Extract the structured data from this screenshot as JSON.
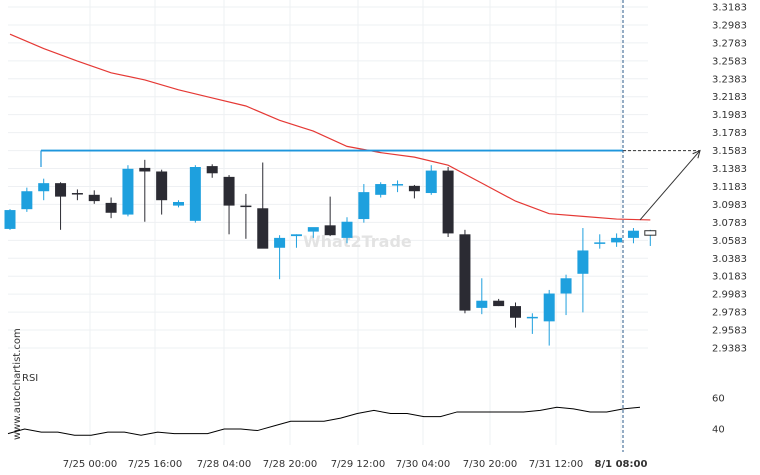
{
  "watermark": "What2Trade",
  "side_watermark": "www.autochartist.com",
  "rsi_label": "RSI",
  "colors": {
    "bull": "#1ea0de",
    "bear": "#2b2b33",
    "ma": "#e53935",
    "resistance": "#1e96dc",
    "rsi": "#000000",
    "vline": "#2a5a8a"
  },
  "chart_data": {
    "type": "candlestick",
    "instrument_timeframe": "hourly",
    "price_axis": {
      "min": 2.9283,
      "max": 3.3183,
      "ticks": [
        "3.3183",
        "3.2983",
        "3.2783",
        "3.2583",
        "3.2383",
        "3.2183",
        "3.1983",
        "3.1783",
        "3.1583",
        "3.1383",
        "3.1183",
        "3.0983",
        "3.0783",
        "3.0583",
        "3.0383",
        "3.0183",
        "2.9983",
        "2.9783",
        "2.9583",
        "2.9383"
      ]
    },
    "x_labels": [
      "7/25 00:00",
      "7/25 16:00",
      "7/28 04:00",
      "7/28 20:00",
      "7/29 12:00",
      "7/30 04:00",
      "7/30 20:00",
      "7/31 12:00",
      "8/1 08:00"
    ],
    "candles": [
      {
        "o": 3.071,
        "h": 3.093,
        "l": 3.07,
        "c": 3.092
      },
      {
        "o": 3.093,
        "h": 3.117,
        "l": 3.09,
        "c": 3.113
      },
      {
        "o": 3.113,
        "h": 3.127,
        "l": 3.103,
        "c": 3.122
      },
      {
        "o": 3.122,
        "h": 3.123,
        "l": 3.07,
        "c": 3.107
      },
      {
        "o": 3.111,
        "h": 3.115,
        "l": 3.103,
        "c": 3.11
      },
      {
        "o": 3.109,
        "h": 3.114,
        "l": 3.099,
        "c": 3.102
      },
      {
        "o": 3.1,
        "h": 3.106,
        "l": 3.083,
        "c": 3.089
      },
      {
        "o": 3.087,
        "h": 3.142,
        "l": 3.085,
        "c": 3.138
      },
      {
        "o": 3.139,
        "h": 3.148,
        "l": 3.079,
        "c": 3.135
      },
      {
        "o": 3.135,
        "h": 3.137,
        "l": 3.087,
        "c": 3.103
      },
      {
        "o": 3.097,
        "h": 3.103,
        "l": 3.095,
        "c": 3.101
      },
      {
        "o": 3.08,
        "h": 3.142,
        "l": 3.078,
        "c": 3.14
      },
      {
        "o": 3.141,
        "h": 3.143,
        "l": 3.128,
        "c": 3.133
      },
      {
        "o": 3.129,
        "h": 3.131,
        "l": 3.065,
        "c": 3.097
      },
      {
        "o": 3.097,
        "h": 3.11,
        "l": 3.06,
        "c": 3.096
      },
      {
        "o": 3.094,
        "h": 3.145,
        "l": 3.05,
        "c": 3.049
      },
      {
        "o": 3.05,
        "h": 3.064,
        "l": 3.015,
        "c": 3.061
      },
      {
        "o": 3.063,
        "h": 3.065,
        "l": 3.05,
        "c": 3.065
      },
      {
        "o": 3.068,
        "h": 3.072,
        "l": 3.061,
        "c": 3.073
      },
      {
        "o": 3.075,
        "h": 3.107,
        "l": 3.063,
        "c": 3.064
      },
      {
        "o": 3.061,
        "h": 3.084,
        "l": 3.055,
        "c": 3.079
      },
      {
        "o": 3.082,
        "h": 3.121,
        "l": 3.078,
        "c": 3.112
      },
      {
        "o": 3.109,
        "h": 3.123,
        "l": 3.106,
        "c": 3.121
      },
      {
        "o": 3.121,
        "h": 3.125,
        "l": 3.112,
        "c": 3.121
      },
      {
        "o": 3.119,
        "h": 3.12,
        "l": 3.105,
        "c": 3.113
      },
      {
        "o": 3.111,
        "h": 3.142,
        "l": 3.109,
        "c": 3.136
      },
      {
        "o": 3.136,
        "h": 3.14,
        "l": 3.062,
        "c": 3.066
      },
      {
        "o": 3.065,
        "h": 3.07,
        "l": 2.977,
        "c": 2.98
      },
      {
        "o": 2.983,
        "h": 3.016,
        "l": 2.976,
        "c": 2.991
      },
      {
        "o": 2.991,
        "h": 2.993,
        "l": 2.985,
        "c": 2.985
      },
      {
        "o": 2.985,
        "h": 2.989,
        "l": 2.961,
        "c": 2.972
      },
      {
        "o": 2.972,
        "h": 2.977,
        "l": 2.954,
        "c": 2.973
      },
      {
        "o": 2.968,
        "h": 3.003,
        "l": 2.941,
        "c": 2.999
      },
      {
        "o": 2.999,
        "h": 3.02,
        "l": 2.975,
        "c": 3.016
      },
      {
        "o": 3.021,
        "h": 3.072,
        "l": 2.978,
        "c": 3.047
      },
      {
        "o": 3.056,
        "h": 3.065,
        "l": 3.049,
        "c": 3.056
      },
      {
        "o": 3.056,
        "h": 3.066,
        "l": 3.051,
        "c": 3.061
      },
      {
        "o": 3.061,
        "h": 3.072,
        "l": 3.055,
        "c": 3.069
      },
      {
        "o": 3.064,
        "h": 3.07,
        "l": 3.052,
        "c": 3.069
      }
    ],
    "moving_average": [
      {
        "i": 0,
        "v": 3.288
      },
      {
        "i": 2,
        "v": 3.272
      },
      {
        "i": 4,
        "v": 3.258
      },
      {
        "i": 6,
        "v": 3.245
      },
      {
        "i": 8,
        "v": 3.237
      },
      {
        "i": 10,
        "v": 3.226
      },
      {
        "i": 12,
        "v": 3.217
      },
      {
        "i": 14,
        "v": 3.208
      },
      {
        "i": 16,
        "v": 3.192
      },
      {
        "i": 18,
        "v": 3.18
      },
      {
        "i": 20,
        "v": 3.163
      },
      {
        "i": 22,
        "v": 3.156
      },
      {
        "i": 24,
        "v": 3.151
      },
      {
        "i": 26,
        "v": 3.142
      },
      {
        "i": 28,
        "v": 3.122
      },
      {
        "i": 30,
        "v": 3.102
      },
      {
        "i": 32,
        "v": 3.088
      },
      {
        "i": 34,
        "v": 3.085
      },
      {
        "i": 36,
        "v": 3.082
      },
      {
        "i": 38,
        "v": 3.081
      }
    ],
    "resistance_level": 3.1583,
    "projection": {
      "from_index": 38,
      "from_price": 3.081,
      "to_price": 3.1583
    },
    "rsi": {
      "ticks": [
        60,
        40
      ],
      "values": [
        37,
        40,
        38,
        38,
        36,
        36,
        38,
        38,
        36,
        38,
        37,
        37,
        37,
        40,
        40,
        39,
        42,
        45,
        45,
        45,
        47,
        50,
        52,
        50,
        50,
        48,
        48,
        51,
        51,
        51,
        51,
        51,
        52,
        54,
        53,
        51,
        51,
        53,
        54
      ]
    }
  }
}
